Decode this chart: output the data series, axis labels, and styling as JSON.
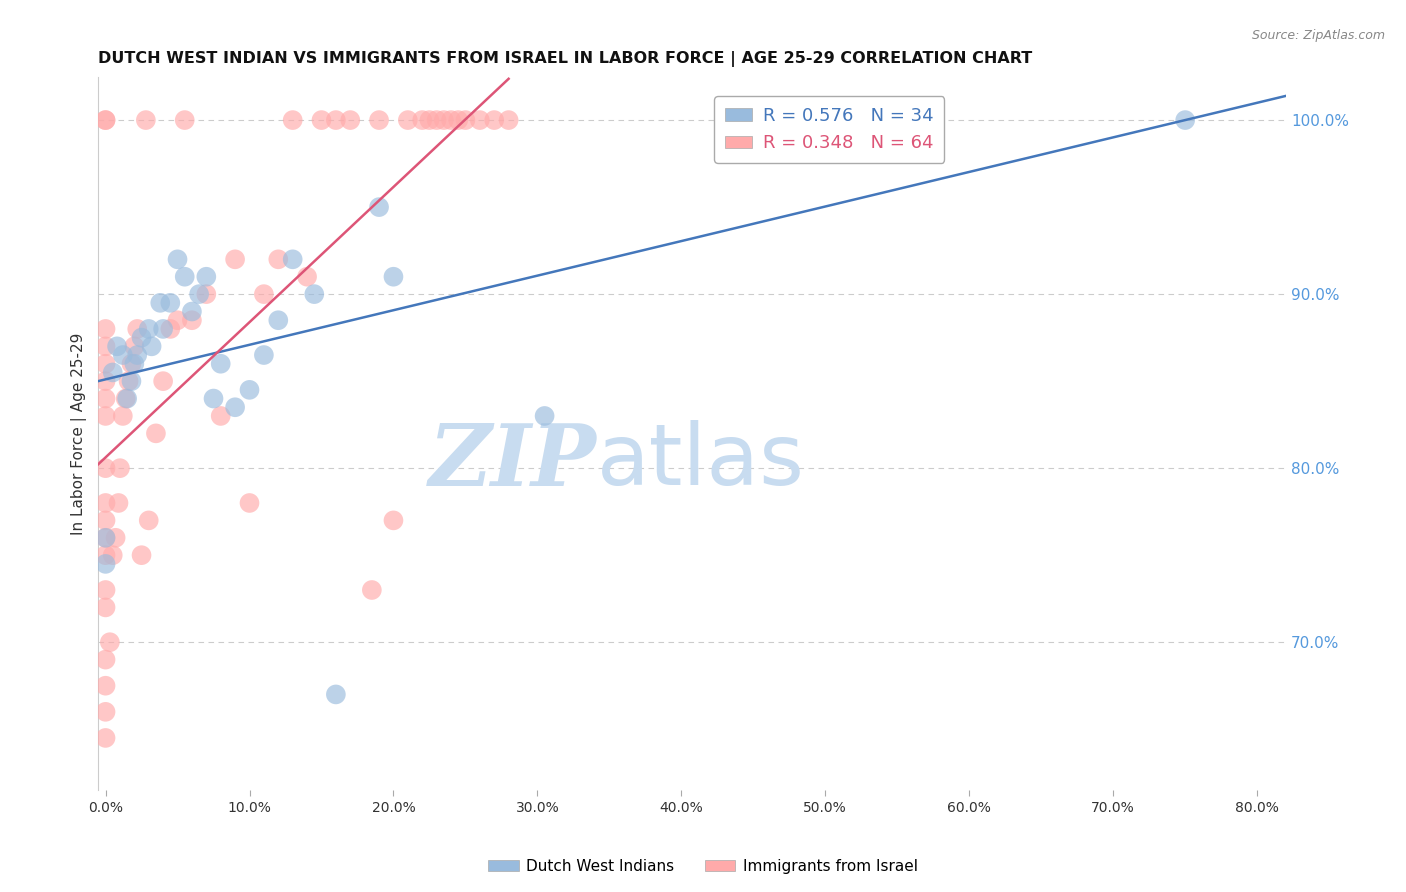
{
  "title": "DUTCH WEST INDIAN VS IMMIGRANTS FROM ISRAEL IN LABOR FORCE | AGE 25-29 CORRELATION CHART",
  "source": "Source: ZipAtlas.com",
  "ylabel": "In Labor Force | Age 25-29",
  "right_ytick_labels": [
    "70.0%",
    "80.0%",
    "90.0%",
    "100.0%"
  ],
  "right_ytick_values": [
    0.7,
    0.8,
    0.9,
    1.0
  ],
  "xtick_labels": [
    "0.0%",
    "10.0%",
    "20.0%",
    "30.0%",
    "40.0%",
    "50.0%",
    "60.0%",
    "70.0%",
    "80.0%"
  ],
  "xtick_values": [
    0.0,
    0.1,
    0.2,
    0.3,
    0.4,
    0.5,
    0.6,
    0.7,
    0.8
  ],
  "xlim": [
    -0.005,
    0.82
  ],
  "ylim": [
    0.615,
    1.025
  ],
  "legend_blue_R": "R = 0.576",
  "legend_blue_N": "N = 34",
  "legend_pink_R": "R = 0.348",
  "legend_pink_N": "N = 64",
  "blue_color": "#99BBDD",
  "pink_color": "#FFAAAA",
  "blue_line_color": "#4477BB",
  "pink_line_color": "#DD5577",
  "right_axis_color": "#5599DD",
  "watermark_zip": "ZIP",
  "watermark_atlas": "atlas",
  "watermark_color": "#C8DCF0",
  "blue_scatter_x": [
    0.0,
    0.0,
    0.005,
    0.008,
    0.012,
    0.015,
    0.018,
    0.02,
    0.022,
    0.025,
    0.03,
    0.032,
    0.038,
    0.04,
    0.045,
    0.05,
    0.055,
    0.06,
    0.065,
    0.07,
    0.075,
    0.08,
    0.09,
    0.1,
    0.11,
    0.12,
    0.13,
    0.145,
    0.16,
    0.19,
    0.2,
    0.305,
    0.51,
    0.75
  ],
  "blue_scatter_y": [
    0.745,
    0.76,
    0.855,
    0.87,
    0.865,
    0.84,
    0.85,
    0.86,
    0.865,
    0.875,
    0.88,
    0.87,
    0.895,
    0.88,
    0.895,
    0.92,
    0.91,
    0.89,
    0.9,
    0.91,
    0.84,
    0.86,
    0.835,
    0.845,
    0.865,
    0.885,
    0.92,
    0.9,
    0.67,
    0.95,
    0.91,
    0.83,
    1.0,
    1.0
  ],
  "pink_scatter_x": [
    0.0,
    0.0,
    0.0,
    0.0,
    0.0,
    0.0,
    0.0,
    0.0,
    0.0,
    0.0,
    0.0,
    0.0,
    0.0,
    0.0,
    0.0,
    0.0,
    0.0,
    0.0,
    0.0,
    0.003,
    0.005,
    0.007,
    0.009,
    0.01,
    0.012,
    0.014,
    0.016,
    0.018,
    0.02,
    0.022,
    0.025,
    0.028,
    0.03,
    0.035,
    0.04,
    0.045,
    0.05,
    0.055,
    0.06,
    0.07,
    0.08,
    0.09,
    0.1,
    0.11,
    0.12,
    0.13,
    0.14,
    0.15,
    0.16,
    0.17,
    0.185,
    0.19,
    0.2,
    0.21,
    0.22,
    0.225,
    0.23,
    0.235,
    0.24,
    0.245,
    0.25,
    0.26,
    0.27,
    0.28
  ],
  "pink_scatter_y": [
    0.645,
    0.66,
    0.675,
    0.69,
    0.72,
    0.73,
    0.75,
    0.76,
    0.77,
    0.78,
    0.8,
    0.83,
    0.84,
    0.85,
    0.86,
    0.87,
    0.88,
    1.0,
    1.0,
    0.7,
    0.75,
    0.76,
    0.78,
    0.8,
    0.83,
    0.84,
    0.85,
    0.86,
    0.87,
    0.88,
    0.75,
    1.0,
    0.77,
    0.82,
    0.85,
    0.88,
    0.885,
    1.0,
    0.885,
    0.9,
    0.83,
    0.92,
    0.78,
    0.9,
    0.92,
    1.0,
    0.91,
    1.0,
    1.0,
    1.0,
    0.73,
    1.0,
    0.77,
    1.0,
    1.0,
    1.0,
    1.0,
    1.0,
    1.0,
    1.0,
    1.0,
    1.0,
    1.0,
    1.0
  ]
}
